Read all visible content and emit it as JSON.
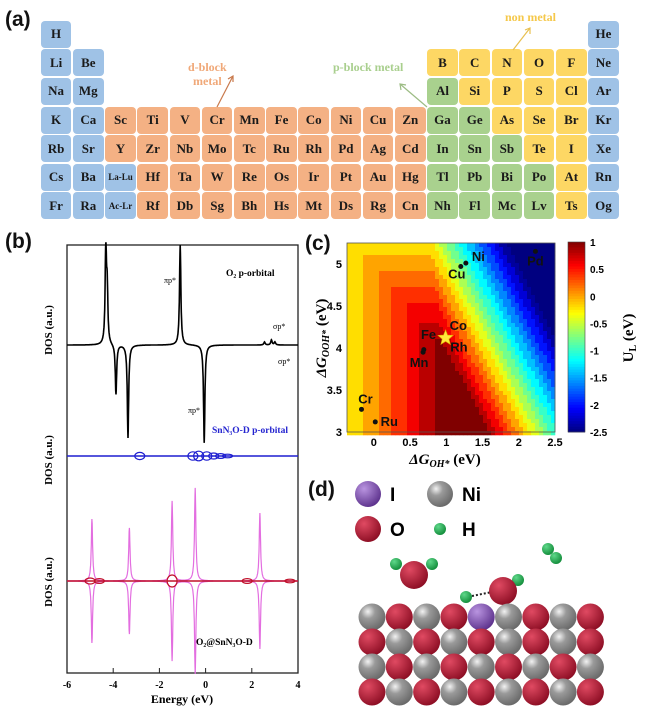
{
  "panels": {
    "a": "(a)",
    "b": "(b)",
    "c": "(c)",
    "d": "(d)"
  },
  "periodic_table": {
    "colors": {
      "s": "#9fc2e6",
      "d": "#f4b184",
      "p": "#a9d18e",
      "n": "#fdd764"
    },
    "rows": [
      [
        "H|s",
        "",
        "",
        "",
        "",
        "",
        "",
        "",
        "",
        "",
        "",
        "",
        "",
        "",
        "",
        "",
        "",
        "He|s"
      ],
      [
        "Li|s",
        "Be|s",
        "",
        "",
        "",
        "",
        "",
        "",
        "",
        "",
        "",
        "",
        "B|n",
        "C|n",
        "N|n",
        "O|n",
        "F|n",
        "Ne|s"
      ],
      [
        "Na|s",
        "Mg|s",
        "",
        "",
        "",
        "",
        "",
        "",
        "",
        "",
        "",
        "",
        "Al|p",
        "Si|n",
        "P|n",
        "S|n",
        "Cl|n",
        "Ar|s"
      ],
      [
        "K|s",
        "Ca|s",
        "Sc|d",
        "Ti|d",
        "V|d",
        "Cr|d",
        "Mn|d",
        "Fe|d",
        "Co|d",
        "Ni|d",
        "Cu|d",
        "Zn|d",
        "Ga|p",
        "Ge|p",
        "As|n",
        "Se|n",
        "Br|n",
        "Kr|s"
      ],
      [
        "Rb|s",
        "Sr|s",
        "Y|d",
        "Zr|d",
        "Nb|d",
        "Mo|d",
        "Tc|d",
        "Ru|d",
        "Rh|d",
        "Pd|d",
        "Ag|d",
        "Cd|d",
        "In|p",
        "Sn|p",
        "Sb|p",
        "Te|n",
        "I|n",
        "Xe|s"
      ],
      [
        "Cs|s",
        "Ba|s",
        "La-Lu|s",
        "Hf|d",
        "Ta|d",
        "W|d",
        "Re|d",
        "Os|d",
        "Ir|d",
        "Pt|d",
        "Au|d",
        "Hg|d",
        "Tl|p",
        "Pb|p",
        "Bi|p",
        "Po|p",
        "At|n",
        "Rn|s"
      ],
      [
        "Fr|s",
        "Ra|s",
        "Ac-Lr|s",
        "Rf|d",
        "Db|d",
        "Sg|d",
        "Bh|d",
        "Hs|d",
        "Mt|d",
        "Ds|d",
        "Rg|d",
        "Cn|d",
        "Nh|p",
        "Fl|p",
        "Mc|p",
        "Lv|p",
        "Ts|n",
        "Og|s"
      ]
    ],
    "annotations": {
      "d_block": "d-block",
      "d_block2": "metal",
      "p_block": "p-block metal",
      "non_metal": "non metal"
    }
  },
  "chart_data": [
    {
      "type": "line",
      "panel": "b",
      "xlabel": "Energy (eV)",
      "ylabel": "DOS (a.u.)",
      "xlim": [
        -6,
        4
      ],
      "xticks": [
        "-6",
        "-4",
        "-2",
        "0",
        "2",
        "4"
      ],
      "series": [
        {
          "name": "O2 p-orbital",
          "color": "#000000",
          "peaks": [
            [
              -4.32,
              0.95
            ],
            [
              -4.26,
              0.5
            ],
            [
              -1.1,
              1.0
            ],
            [
              2.55,
              0.03
            ],
            [
              2.85,
              0.05
            ],
            [
              3.0,
              0.03
            ],
            [
              -3.88,
              -0.5
            ],
            [
              -3.36,
              -0.93
            ],
            [
              -0.06,
              -0.98
            ]
          ]
        },
        {
          "name": "SnN3O-D p-orbital",
          "color": "#1f1fd0",
          "loops": [
            [
              -2.85,
              0.06
            ],
            [
              -0.55,
              0.07
            ],
            [
              -0.3,
              0.08
            ],
            [
              0.05,
              0.07
            ],
            [
              0.35,
              0.05
            ],
            [
              0.65,
              0.04
            ],
            [
              0.95,
              0.03
            ]
          ]
        },
        {
          "name": "O2@SnN3O-D",
          "color": "#e36ee0",
          "peaks": [
            [
              -4.92,
              0.62
            ],
            [
              -3.3,
              0.53
            ],
            [
              -1.45,
              0.8
            ],
            [
              -0.45,
              0.93
            ],
            [
              2.35,
              0.68
            ]
          ]
        },
        {
          "name": "O2@SnN3O-D (red)",
          "color": "#c0102a",
          "loops": [
            [
              -5.0,
              0.05
            ],
            [
              -4.6,
              0.04
            ],
            [
              -1.45,
              0.1
            ],
            [
              1.8,
              0.04
            ],
            [
              3.65,
              0.03
            ]
          ]
        }
      ],
      "annotations": {
        "o2": "O₂ p-orbital",
        "pi_up": "πp*",
        "sigma_up": "σp*",
        "sigma_dn": "σp*",
        "pi_dn": "πp*",
        "sn": "SnN₃O-D p-orbital",
        "o2sn": "O₂@SnN₃O-D"
      }
    },
    {
      "type": "heatmap",
      "panel": "c",
      "xlabel": "ΔG",
      "xlabel_sub": "OH*",
      "xlabel_unit": " (eV)",
      "ylabel": "ΔG",
      "ylabel_sub": "OOH*",
      "ylabel_unit": " (eV)",
      "xlim": [
        -0.37,
        2.5
      ],
      "ylim": [
        3.0,
        5.25
      ],
      "xticks": [
        0,
        0.5,
        1,
        1.5,
        2,
        2.5
      ],
      "yticks": [
        3,
        3.5,
        4,
        4.5,
        5
      ],
      "colorbar": {
        "label": "U",
        "label_sub": "L",
        "label_unit": " (eV)",
        "range": [
          -2.5,
          1
        ],
        "ticks": [
          "1",
          "0.5",
          "0",
          "-0.5",
          "-1",
          "-1.5",
          "-2",
          "-2.5"
        ]
      },
      "surface": {
        "step": 0.2,
        "t1": [
          1.0,
          -0.05
        ],
        "t2": [
          4.92
        ],
        "t3": [
          2.15,
          3.35,
          0.6,
          0.9
        ]
      },
      "points": [
        {
          "label": "Ni",
          "x": 1.27,
          "y": 5.01
        },
        {
          "label": "Cu",
          "x": 1.2,
          "y": 4.97
        },
        {
          "label": "Pd",
          "x": 2.23,
          "y": 5.15
        },
        {
          "label": "Co",
          "x": 0.99,
          "y": 4.12,
          "star": true
        },
        {
          "label": "Fe",
          "x": 0.97,
          "y": 4.11,
          "star": true
        },
        {
          "label": "Rh",
          "x": 1.0,
          "y": 4.1,
          "star": true
        },
        {
          "label": "Mn",
          "x": 0.68,
          "y": 3.95
        },
        {
          "label": "",
          "x": 0.69,
          "y": 3.98
        },
        {
          "label": "Cr",
          "x": -0.17,
          "y": 3.27
        },
        {
          "label": "Ru",
          "x": 0.02,
          "y": 3.12
        }
      ]
    }
  ],
  "structure": {
    "legend": [
      {
        "label": "I",
        "atom": "I"
      },
      {
        "label": "Ni",
        "atom": "Ni"
      },
      {
        "label": "O",
        "atom": "O"
      },
      {
        "label": "H",
        "atom": "H"
      }
    ],
    "atom_colors": {
      "I": "#7a4aa8",
      "Ni": "#8c8c8c",
      "O": "#b0132e",
      "H": "#1fa54a"
    },
    "slab": [
      [
        "Ni",
        "O",
        "Ni",
        "O",
        "I",
        "Ni",
        "O",
        "Ni",
        "O"
      ],
      [
        "O",
        "Ni",
        "O",
        "Ni",
        "O",
        "Ni",
        "O",
        "Ni",
        "O"
      ],
      [
        "Ni",
        "O",
        "Ni",
        "O",
        "Ni",
        "O",
        "Ni",
        "O",
        "Ni"
      ],
      [
        "O",
        "Ni",
        "O",
        "Ni",
        "O",
        "Ni",
        "O",
        "Ni",
        "O"
      ]
    ]
  }
}
